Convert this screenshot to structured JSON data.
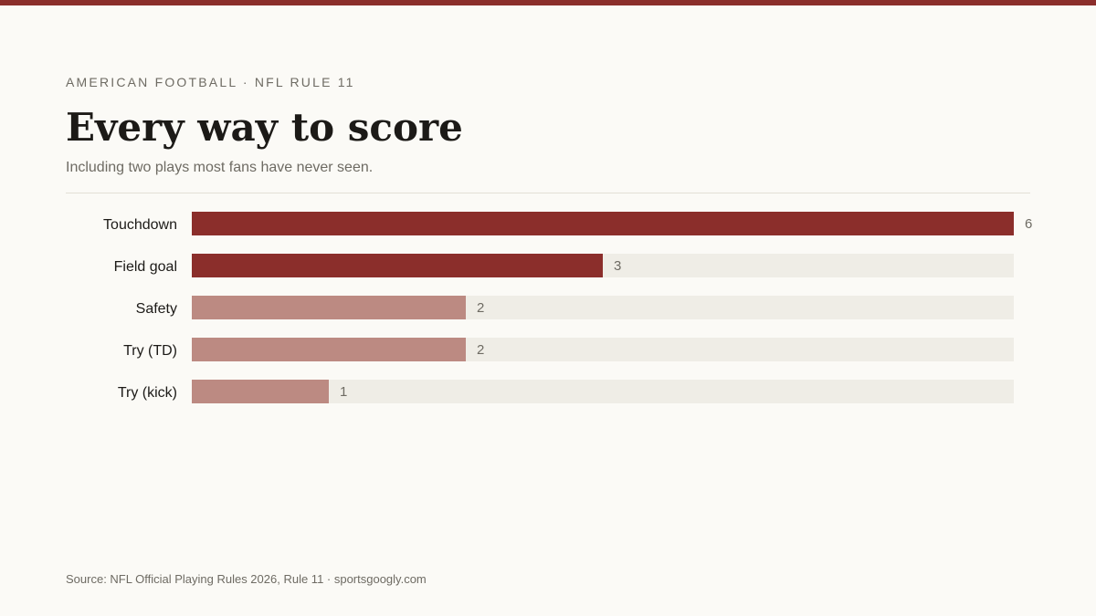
{
  "header": {
    "kicker": "AMERICAN FOOTBALL · NFL RULE 11",
    "title": "Every way to score",
    "subtitle": "Including two plays most fans have never seen."
  },
  "footer": {
    "source": "Source: NFL Official Playing Rules 2026, Rule 11 · sportsgoogly.com"
  },
  "colors": {
    "accent": "#8b2e2b",
    "muted": "#bc8a82",
    "track": "#efede6",
    "label": "#1c1a17",
    "value": "#6e6b63"
  },
  "chart_data": {
    "type": "bar",
    "orientation": "horizontal",
    "categories": [
      "Touchdown",
      "Field goal",
      "Safety",
      "Try (TD)",
      "Try (kick)"
    ],
    "values": [
      6,
      3,
      2,
      2,
      1
    ],
    "highlight": [
      true,
      true,
      false,
      false,
      false
    ],
    "xlim": [
      0,
      6
    ],
    "grid": false,
    "legend": "none"
  }
}
